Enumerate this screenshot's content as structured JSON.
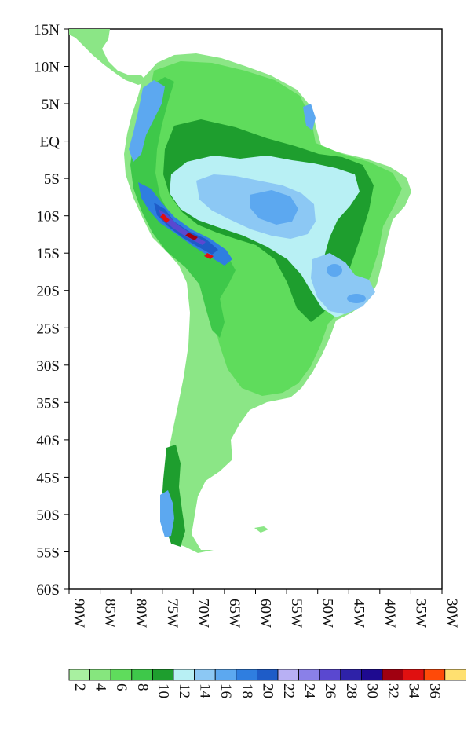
{
  "map": {
    "lat_labels": [
      "15N",
      "10N",
      "5N",
      "EQ",
      "5S",
      "10S",
      "15S",
      "20S",
      "25S",
      "30S",
      "35S",
      "40S",
      "45S",
      "50S",
      "55S",
      "60S"
    ],
    "lon_labels": [
      "90W",
      "85W",
      "80W",
      "75W",
      "70W",
      "65W",
      "60W",
      "55W",
      "50W",
      "45W",
      "40W",
      "35W",
      "30W"
    ],
    "lat_range": [
      15,
      -60
    ],
    "lon_range": [
      -90,
      -30
    ]
  },
  "legend": {
    "labels": [
      "2",
      "4",
      "6",
      "8",
      "10",
      "12",
      "14",
      "16",
      "18",
      "20",
      "22",
      "24",
      "26",
      "28",
      "30",
      "32",
      "34",
      "36"
    ],
    "colors": [
      "#a8f0a0",
      "#86e67e",
      "#5fdc5c",
      "#3ec84a",
      "#1e9e2e",
      "#b8f0f4",
      "#8cc8f4",
      "#5ca8f0",
      "#2f7ee0",
      "#1e5cc8",
      "#b8b0f4",
      "#8a80e8",
      "#5a48d0",
      "#2e22a8",
      "#1e0a90",
      "#a00010",
      "#e01010",
      "#ff4a08",
      "#ffe070"
    ]
  }
}
